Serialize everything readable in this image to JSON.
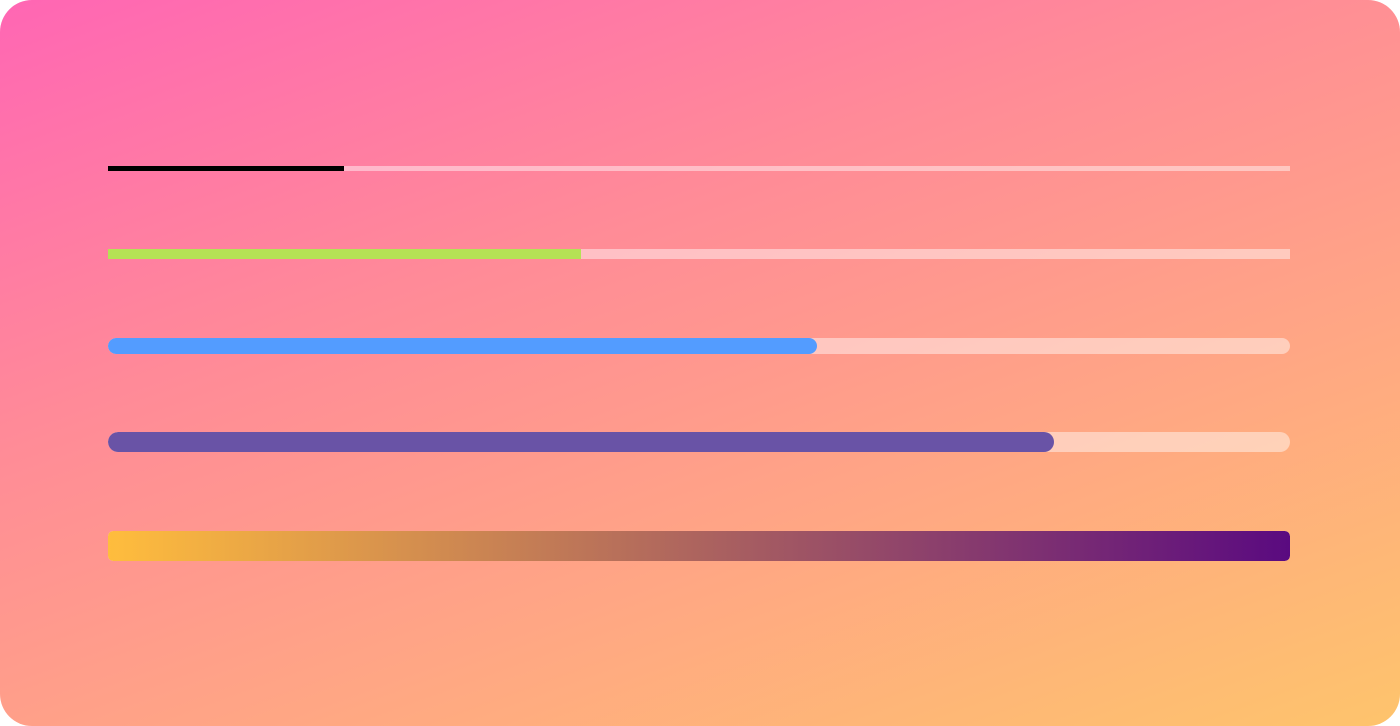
{
  "progress_bars": [
    {
      "value_percent": 20,
      "color": "#000000"
    },
    {
      "value_percent": 40,
      "color": "#b5e255"
    },
    {
      "value_percent": 60,
      "color": "#539cff"
    },
    {
      "value_percent": 80,
      "color": "#6953a6"
    },
    {
      "value_percent": 100,
      "gradient": [
        "#ffbd3d",
        "#5a0a80"
      ]
    }
  ],
  "colors": {
    "background_start": "#ff66b4",
    "background_end": "#fec46c"
  }
}
